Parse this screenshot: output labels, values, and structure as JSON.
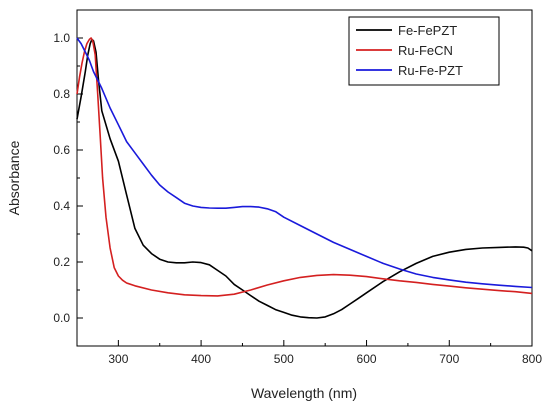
{
  "chart_data": {
    "type": "line",
    "title": "",
    "xlabel": "Wavelength (nm)",
    "ylabel": "Absorbance",
    "xlim": [
      250,
      800
    ],
    "ylim": [
      -0.1,
      1.1
    ],
    "x_ticks": [
      "300",
      "400",
      "500",
      "600",
      "700",
      "800"
    ],
    "y_ticks": [
      "0.0",
      "0.2",
      "0.4",
      "0.6",
      "0.8",
      "1.0"
    ],
    "grid": false,
    "legend_position": "top-right",
    "series": [
      {
        "name": "Fe-FePZT",
        "color": "#000000",
        "points": [
          [
            250,
            0.71
          ],
          [
            255,
            0.79
          ],
          [
            260,
            0.88
          ],
          [
            263,
            0.94
          ],
          [
            266,
            0.98
          ],
          [
            268,
            0.995
          ],
          [
            270,
            0.99
          ],
          [
            273,
            0.95
          ],
          [
            276,
            0.85
          ],
          [
            280,
            0.74
          ],
          [
            290,
            0.64
          ],
          [
            300,
            0.56
          ],
          [
            310,
            0.44
          ],
          [
            320,
            0.32
          ],
          [
            330,
            0.26
          ],
          [
            340,
            0.23
          ],
          [
            350,
            0.21
          ],
          [
            360,
            0.2
          ],
          [
            370,
            0.197
          ],
          [
            380,
            0.197
          ],
          [
            390,
            0.2
          ],
          [
            400,
            0.198
          ],
          [
            410,
            0.19
          ],
          [
            420,
            0.17
          ],
          [
            430,
            0.15
          ],
          [
            440,
            0.12
          ],
          [
            450,
            0.1
          ],
          [
            460,
            0.08
          ],
          [
            470,
            0.06
          ],
          [
            480,
            0.045
          ],
          [
            490,
            0.03
          ],
          [
            500,
            0.02
          ],
          [
            510,
            0.01
          ],
          [
            520,
            0.004
          ],
          [
            530,
            0.001
          ],
          [
            540,
            0.0
          ],
          [
            550,
            0.004
          ],
          [
            560,
            0.015
          ],
          [
            570,
            0.03
          ],
          [
            580,
            0.05
          ],
          [
            590,
            0.07
          ],
          [
            600,
            0.09
          ],
          [
            620,
            0.13
          ],
          [
            640,
            0.165
          ],
          [
            660,
            0.195
          ],
          [
            680,
            0.22
          ],
          [
            700,
            0.235
          ],
          [
            720,
            0.245
          ],
          [
            740,
            0.25
          ],
          [
            760,
            0.252
          ],
          [
            780,
            0.254
          ],
          [
            790,
            0.253
          ],
          [
            795,
            0.25
          ],
          [
            800,
            0.24
          ]
        ]
      },
      {
        "name": "Ru-FeCN",
        "color": "#d42020",
        "points": [
          [
            250,
            0.8
          ],
          [
            253,
            0.86
          ],
          [
            256,
            0.91
          ],
          [
            259,
            0.95
          ],
          [
            262,
            0.98
          ],
          [
            265,
            0.995
          ],
          [
            267,
            1.0
          ],
          [
            269,
            0.99
          ],
          [
            272,
            0.94
          ],
          [
            275,
            0.8
          ],
          [
            278,
            0.65
          ],
          [
            281,
            0.5
          ],
          [
            285,
            0.36
          ],
          [
            290,
            0.25
          ],
          [
            295,
            0.18
          ],
          [
            300,
            0.15
          ],
          [
            305,
            0.135
          ],
          [
            310,
            0.125
          ],
          [
            320,
            0.115
          ],
          [
            340,
            0.1
          ],
          [
            360,
            0.09
          ],
          [
            380,
            0.083
          ],
          [
            400,
            0.08
          ],
          [
            420,
            0.079
          ],
          [
            440,
            0.085
          ],
          [
            460,
            0.1
          ],
          [
            480,
            0.118
          ],
          [
            500,
            0.133
          ],
          [
            520,
            0.145
          ],
          [
            540,
            0.152
          ],
          [
            560,
            0.155
          ],
          [
            580,
            0.153
          ],
          [
            600,
            0.148
          ],
          [
            620,
            0.14
          ],
          [
            640,
            0.133
          ],
          [
            660,
            0.127
          ],
          [
            680,
            0.12
          ],
          [
            700,
            0.114
          ],
          [
            720,
            0.108
          ],
          [
            740,
            0.103
          ],
          [
            760,
            0.098
          ],
          [
            780,
            0.094
          ],
          [
            800,
            0.088
          ]
        ]
      },
      {
        "name": "Ru-Fe-PZT",
        "color": "#1a1adb",
        "points": [
          [
            250,
            1.0
          ],
          [
            255,
            0.98
          ],
          [
            260,
            0.95
          ],
          [
            265,
            0.92
          ],
          [
            270,
            0.88
          ],
          [
            280,
            0.82
          ],
          [
            290,
            0.75
          ],
          [
            300,
            0.69
          ],
          [
            310,
            0.63
          ],
          [
            320,
            0.59
          ],
          [
            330,
            0.55
          ],
          [
            340,
            0.51
          ],
          [
            350,
            0.475
          ],
          [
            360,
            0.45
          ],
          [
            370,
            0.43
          ],
          [
            380,
            0.41
          ],
          [
            390,
            0.4
          ],
          [
            400,
            0.395
          ],
          [
            410,
            0.393
          ],
          [
            420,
            0.392
          ],
          [
            430,
            0.392
          ],
          [
            440,
            0.395
          ],
          [
            450,
            0.398
          ],
          [
            460,
            0.398
          ],
          [
            470,
            0.396
          ],
          [
            480,
            0.39
          ],
          [
            490,
            0.38
          ],
          [
            500,
            0.36
          ],
          [
            520,
            0.33
          ],
          [
            540,
            0.3
          ],
          [
            560,
            0.27
          ],
          [
            580,
            0.245
          ],
          [
            600,
            0.22
          ],
          [
            620,
            0.195
          ],
          [
            640,
            0.175
          ],
          [
            660,
            0.157
          ],
          [
            680,
            0.145
          ],
          [
            700,
            0.136
          ],
          [
            720,
            0.128
          ],
          [
            740,
            0.122
          ],
          [
            760,
            0.117
          ],
          [
            780,
            0.113
          ],
          [
            800,
            0.109
          ]
        ]
      }
    ]
  }
}
